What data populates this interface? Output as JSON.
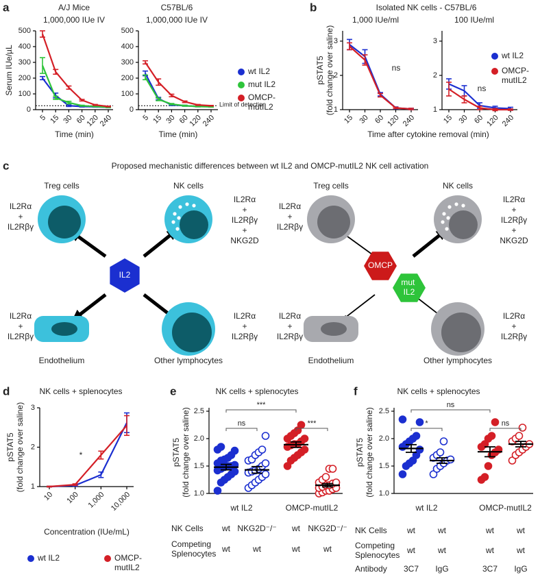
{
  "panel_labels": [
    "a",
    "b",
    "c",
    "d",
    "e",
    "f"
  ],
  "chart_data": [
    {
      "type": "line",
      "title": "A/J Mice",
      "subtitle": "1,000,000 IUe IV",
      "categories": [
        "5",
        "15",
        "30",
        "60",
        "120",
        "240"
      ],
      "series": [
        {
          "color": "#1b2fd0",
          "values": [
            200,
            90,
            25,
            20,
            18,
            15
          ],
          "errors": [
            10,
            15,
            5,
            3,
            2,
            2
          ]
        },
        {
          "color": "#2ec43a",
          "values": [
            280,
            75,
            45,
            25,
            20,
            15
          ],
          "errors": [
            50,
            10,
            8,
            3,
            2,
            2
          ]
        },
        {
          "color": "#d41f26",
          "values": [
            480,
            240,
            140,
            60,
            30,
            20
          ],
          "errors": [
            20,
            15,
            10,
            5,
            3,
            2
          ]
        }
      ],
      "ylim": [
        0,
        500
      ],
      "yticks": [
        0,
        100,
        200,
        300,
        400,
        500
      ],
      "hline": 25,
      "xlabel": "Time (min)",
      "ylabel": "Serum IUe/µL"
    },
    {
      "type": "line",
      "title": "C57BL/6",
      "subtitle": "1,000,000 IUe IV",
      "categories": [
        "5",
        "15",
        "30",
        "60",
        "120",
        "240"
      ],
      "series": [
        {
          "name": "wt IL2",
          "color": "#1b2fd0",
          "values": [
            230,
            70,
            30,
            25,
            20,
            20
          ],
          "errors": [
            15,
            8,
            4,
            3,
            2,
            2
          ]
        },
        {
          "name": "mut IL2",
          "color": "#2ec43a",
          "values": [
            205,
            65,
            35,
            25,
            20,
            18
          ],
          "errors": [
            15,
            8,
            4,
            3,
            2,
            2
          ]
        },
        {
          "name": "OMCP-mutIL2",
          "color": "#d41f26",
          "values": [
            300,
            175,
            90,
            50,
            30,
            25
          ],
          "errors": [
            10,
            20,
            8,
            5,
            3,
            2
          ]
        }
      ],
      "ylim": [
        0,
        500
      ],
      "yticks": [
        0,
        100,
        200,
        300,
        400,
        500
      ],
      "hline": 25,
      "annotation": "Limit of detection",
      "xlabel": "Time (min)"
    },
    {
      "type": "line",
      "suptitle": "Isolated NK cells - C57BL/6",
      "title": "1,000 IUe/ml",
      "categories": [
        "15",
        "30",
        "60",
        "120",
        "240"
      ],
      "series": [
        {
          "color": "#1b2fd0",
          "values": [
            2.9,
            2.55,
            1.45,
            1.05,
            1.02
          ],
          "errors": [
            0.15,
            0.2,
            0.05,
            0.03,
            0.02
          ]
        },
        {
          "color": "#d41f26",
          "values": [
            2.85,
            2.45,
            1.42,
            1.05,
            1.02
          ],
          "errors": [
            0.1,
            0.15,
            0.05,
            0.02,
            0.02
          ]
        }
      ],
      "ylim": [
        1,
        3.3
      ],
      "yticks": [
        1,
        2,
        3
      ],
      "annotation": "ns",
      "xlabel": "Time after cytokine removal (min)",
      "ylabel": [
        "pSTAT5",
        "(fold change over saline)"
      ]
    },
    {
      "type": "line",
      "title": "100 IUe/ml",
      "categories": [
        "15",
        "30",
        "60",
        "120",
        "240"
      ],
      "series": [
        {
          "name": "wt IL2",
          "color": "#1b2fd0",
          "values": [
            1.75,
            1.55,
            1.12,
            1.05,
            1.03
          ],
          "errors": [
            0.15,
            0.15,
            0.08,
            0.05,
            0.04
          ]
        },
        {
          "name": "OMCP-mutIL2",
          "color": "#d41f26",
          "values": [
            1.6,
            1.3,
            1.05,
            1.0,
            1.0
          ],
          "errors": [
            0.2,
            0.1,
            0.05,
            0.03,
            0.02
          ]
        }
      ],
      "ylim": [
        1,
        3.3
      ],
      "yticks": [
        1,
        2,
        3
      ],
      "annotation": "ns"
    },
    {
      "type": "line",
      "title": "NK cells + splenocytes",
      "xlog": true,
      "x": [
        10,
        100,
        1000,
        10000
      ],
      "xlim": [
        10,
        10000
      ],
      "xticks": [
        10,
        100,
        {
          "value": 1000,
          "label": "1,000"
        },
        {
          "value": 10000,
          "label": "10,000"
        }
      ],
      "series": [
        {
          "name": "wt IL2",
          "color": "#1b2fd0",
          "values": [
            1.0,
            1.03,
            1.3,
            2.62
          ],
          "errors": [
            0.01,
            0.02,
            0.07,
            0.25
          ]
        },
        {
          "name": "OMCP-mutIL2",
          "color": "#d41f26",
          "values": [
            1.0,
            1.05,
            1.8,
            2.55
          ],
          "errors": [
            0.01,
            0.02,
            0.1,
            0.25
          ]
        }
      ],
      "ylim": [
        1,
        3
      ],
      "yticks": [
        1,
        2,
        3
      ],
      "annotation": "*",
      "xlabel": "Concentration (IUe/mL)",
      "ylabel": [
        "pSTAT5",
        "(fold change over saline)"
      ]
    },
    {
      "type": "dot",
      "title": "NK cells + splenocytes",
      "categories": [
        "wt IL2",
        "OMCP-mutIL2"
      ],
      "groups": [
        {
          "color": "#1b2fd0",
          "filled": true,
          "values": [
            1.05,
            1.2,
            1.25,
            1.3,
            1.35,
            1.4,
            1.42,
            1.45,
            1.48,
            1.5,
            1.5,
            1.52,
            1.55,
            1.6,
            1.62,
            1.65,
            1.7,
            1.78,
            1.8,
            1.85
          ],
          "mean": 1.48,
          "sem": 0.05
        },
        {
          "color": "#1b2fd0",
          "filled": false,
          "values": [
            1.1,
            1.15,
            1.2,
            1.25,
            1.3,
            1.35,
            1.38,
            1.4,
            1.42,
            1.45,
            1.5,
            1.55,
            1.6,
            1.62,
            1.7,
            1.75,
            1.8,
            2.05
          ],
          "mean": 1.43,
          "sem": 0.06
        },
        {
          "color": "#d41f26",
          "filled": true,
          "values": [
            1.5,
            1.6,
            1.65,
            1.7,
            1.75,
            1.8,
            1.85,
            1.88,
            1.9,
            1.9,
            1.95,
            2.0,
            2.0,
            2.05,
            2.1,
            2.15,
            2.25
          ],
          "mean": 1.89,
          "sem": 0.05
        },
        {
          "color": "#d41f26",
          "filled": false,
          "values": [
            1.0,
            1.02,
            1.05,
            1.05,
            1.08,
            1.1,
            1.1,
            1.12,
            1.15,
            1.15,
            1.18,
            1.2,
            1.2,
            1.25,
            1.3,
            1.45,
            1.45
          ],
          "mean": 1.15,
          "sem": 0.03
        }
      ],
      "significance": [
        "ns",
        "***",
        "***"
      ],
      "ylim": [
        1,
        2.5
      ],
      "yticks": [
        {
          "value": 1,
          "label": "1.0"
        },
        1.5,
        {
          "value": 2,
          "label": "2.0"
        },
        2.5
      ],
      "ylabel": [
        "pSTAT5",
        "(fold change over saline)"
      ],
      "table": [
        {
          "label": [
            "NK Cells"
          ],
          "cells": [
            "wt",
            "NKG2D⁻/⁻",
            "wt",
            "NKG2D⁻/⁻"
          ]
        },
        {
          "label": [
            "Competing",
            "Splenocytes"
          ],
          "cells": [
            "wt",
            "wt",
            "wt",
            "wt"
          ]
        }
      ]
    },
    {
      "type": "dot",
      "title": "NK cells + splenocytes",
      "categories": [
        "wt IL2",
        "OMCP-mutIL2"
      ],
      "groups": [
        {
          "color": "#1b2fd0",
          "filled": true,
          "values": [
            1.35,
            1.5,
            1.55,
            1.6,
            1.7,
            1.8,
            1.85,
            1.9,
            1.95,
            2.0,
            2.05,
            2.3,
            2.35
          ],
          "mean": 1.82,
          "sem": 0.07
        },
        {
          "color": "#1b2fd0",
          "filled": false,
          "values": [
            1.35,
            1.45,
            1.5,
            1.55,
            1.6,
            1.62,
            1.65,
            1.7,
            1.75,
            1.95
          ],
          "mean": 1.6,
          "sem": 0.05
        },
        {
          "color": "#d41f26",
          "filled": true,
          "values": [
            1.25,
            1.3,
            1.5,
            1.7,
            1.75,
            1.8,
            1.85,
            1.9,
            2.0,
            2.05,
            2.3
          ],
          "mean": 1.76,
          "sem": 0.09
        },
        {
          "color": "#d41f26",
          "filled": false,
          "values": [
            1.6,
            1.7,
            1.75,
            1.8,
            1.85,
            1.9,
            1.95,
            2.0,
            2.05,
            2.2
          ],
          "mean": 1.9,
          "sem": 0.05
        }
      ],
      "significance": [
        "*",
        "ns",
        "ns"
      ],
      "ylim": [
        1,
        2.5
      ],
      "yticks": [
        {
          "value": 1,
          "label": "1.0"
        },
        1.5,
        {
          "value": 2,
          "label": "2.0"
        },
        2.5
      ],
      "ylabel": [
        "pSTAT5",
        "(fold change over saline)"
      ],
      "table": [
        {
          "label": [
            "NK Cells"
          ],
          "cells": [
            "wt",
            "wt",
            "wt",
            "wt"
          ]
        },
        {
          "label": [
            "Competing",
            "Splenocytes"
          ],
          "cells": [
            "wt",
            "wt",
            "wt",
            "wt"
          ]
        },
        {
          "label": [
            "Antibody"
          ],
          "cells": [
            "3C7",
            "IgG",
            "3C7",
            "IgG"
          ]
        }
      ]
    }
  ],
  "diagram": {
    "title": "Proposed mechanistic differences between wt IL2 and OMCP-mutIL2 NK cell activation",
    "panels": [
      {
        "centers": [
          "IL2"
        ],
        "cells": [
          {
            "label": "Treg cells",
            "receptors": [
              "IL2Rα",
              "+",
              "IL2Rβγ"
            ]
          },
          {
            "label": "NK cells",
            "receptors": [
              "IL2Rα",
              "+",
              "IL2Rβγ",
              "+",
              "NKG2D"
            ]
          },
          {
            "label": "Endothelium",
            "receptors": [
              "IL2Rα",
              "+",
              "IL2Rβγ"
            ]
          },
          {
            "label": "Other lymphocytes",
            "receptors": [
              "IL2Rα",
              "+",
              "IL2Rβγ"
            ]
          }
        ]
      },
      {
        "centers": [
          "OMCP",
          "mut IL2"
        ],
        "cells": [
          {
            "label": "Treg cells",
            "receptors": [
              "IL2Rα",
              "+",
              "IL2Rβγ"
            ]
          },
          {
            "label": "NK cells",
            "receptors": [
              "IL2Rα",
              "+",
              "IL2Rβγ",
              "+",
              "NKG2D"
            ]
          },
          {
            "label": "Endothelium",
            "receptors": [
              "IL2Rα",
              "+",
              "IL2Rβγ"
            ]
          },
          {
            "label": "Other lymphocytes",
            "receptors": [
              "IL2Rα",
              "+",
              "IL2Rβγ"
            ]
          }
        ]
      }
    ]
  }
}
